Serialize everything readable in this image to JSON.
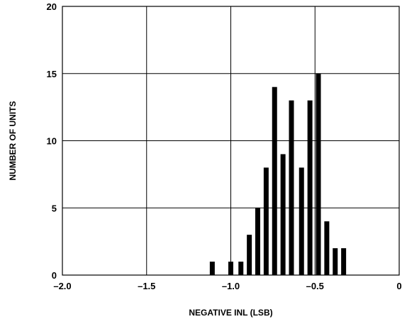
{
  "chart_data": {
    "type": "bar",
    "xlabel": "NEGATIVE INL (LSB)",
    "ylabel": "NUMBER OF UNITS",
    "xlim": [
      -2.0,
      0
    ],
    "ylim": [
      0,
      20
    ],
    "grid": true,
    "x_ticks": [
      {
        "value": -2.0,
        "label": "–2.0"
      },
      {
        "value": -1.5,
        "label": "–1.5"
      },
      {
        "value": -1.0,
        "label": "–1.0"
      },
      {
        "value": -0.5,
        "label": "–0.5"
      },
      {
        "value": 0,
        "label": "0"
      }
    ],
    "y_ticks": [
      {
        "value": 0,
        "label": "0"
      },
      {
        "value": 5,
        "label": "5"
      },
      {
        "value": 10,
        "label": "10"
      },
      {
        "value": 15,
        "label": "15"
      },
      {
        "value": 20,
        "label": "20"
      }
    ],
    "bars": [
      {
        "x": -1.11,
        "value": 1
      },
      {
        "x": -1.0,
        "value": 1
      },
      {
        "x": -0.94,
        "value": 1
      },
      {
        "x": -0.89,
        "value": 3
      },
      {
        "x": -0.84,
        "value": 5
      },
      {
        "x": -0.79,
        "value": 8
      },
      {
        "x": -0.74,
        "value": 14
      },
      {
        "x": -0.69,
        "value": 9
      },
      {
        "x": -0.64,
        "value": 13
      },
      {
        "x": -0.58,
        "value": 8
      },
      {
        "x": -0.53,
        "value": 13
      },
      {
        "x": -0.48,
        "value": 15
      },
      {
        "x": -0.43,
        "value": 4
      },
      {
        "x": -0.38,
        "value": 2
      },
      {
        "x": -0.33,
        "value": 2
      }
    ]
  }
}
